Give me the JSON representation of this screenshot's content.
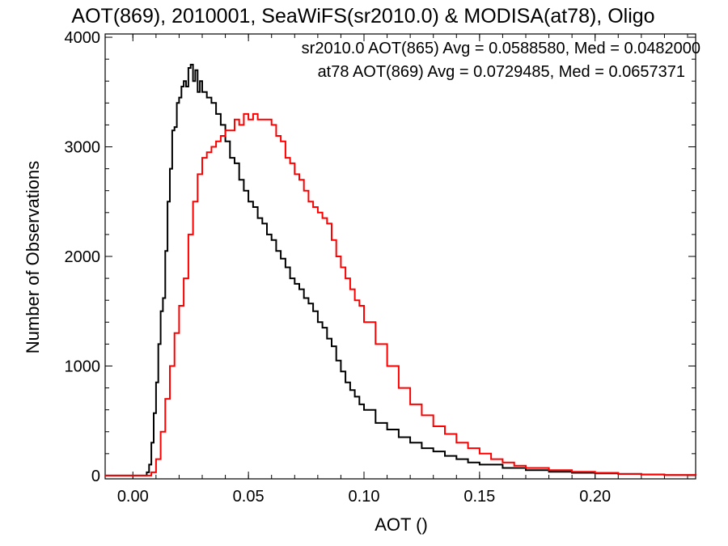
{
  "chart_data": {
    "type": "line",
    "title": "AOT(869), 2010001, SeaWiFS(sr2010.0) & MODISA(at78), Oligo",
    "xlabel": "AOT ()",
    "ylabel": "Number of Observations",
    "xlim": [
      -0.012,
      0.2435
    ],
    "ylim": [
      -30,
      4030
    ],
    "xticks": [
      0.0,
      0.05,
      0.1,
      0.15,
      0.2
    ],
    "xtick_labels": [
      "0.00",
      "0.05",
      "0.10",
      "0.15",
      "0.20"
    ],
    "yticks": [
      0,
      1000,
      2000,
      3000,
      4000
    ],
    "ytick_labels": [
      "0",
      "1000",
      "2000",
      "3000",
      "4000"
    ],
    "grid": false,
    "legend_position": "top-right",
    "series": [
      {
        "name": "sr2010.0 AOT(865) Avg = 0.0588580, Med = 0.0482000",
        "color": "#000000",
        "x": [
          -0.012,
          0.0,
          0.005,
          0.006,
          0.007,
          0.008,
          0.009,
          0.01,
          0.011,
          0.012,
          0.013,
          0.014,
          0.015,
          0.016,
          0.017,
          0.018,
          0.019,
          0.02,
          0.021,
          0.022,
          0.023,
          0.024,
          0.025,
          0.026,
          0.027,
          0.028,
          0.029,
          0.03,
          0.032,
          0.034,
          0.036,
          0.038,
          0.04,
          0.042,
          0.044,
          0.046,
          0.048,
          0.05,
          0.052,
          0.054,
          0.056,
          0.058,
          0.06,
          0.062,
          0.064,
          0.066,
          0.068,
          0.07,
          0.072,
          0.074,
          0.076,
          0.078,
          0.08,
          0.082,
          0.084,
          0.086,
          0.088,
          0.09,
          0.092,
          0.094,
          0.096,
          0.098,
          0.1,
          0.105,
          0.11,
          0.115,
          0.12,
          0.125,
          0.13,
          0.135,
          0.14,
          0.145,
          0.15,
          0.16,
          0.17,
          0.18,
          0.19,
          0.2,
          0.21,
          0.22,
          0.23,
          0.2435
        ],
        "y": [
          0,
          0,
          0,
          30,
          100,
          300,
          570,
          850,
          1200,
          1500,
          1620,
          2050,
          2500,
          2800,
          3150,
          3180,
          3400,
          3450,
          3550,
          3600,
          3550,
          3720,
          3750,
          3600,
          3700,
          3500,
          3600,
          3500,
          3450,
          3400,
          3300,
          3200,
          3050,
          2900,
          2850,
          2700,
          2600,
          2500,
          2450,
          2350,
          2300,
          2200,
          2150,
          2050,
          1980,
          1900,
          1800,
          1750,
          1700,
          1620,
          1570,
          1500,
          1400,
          1350,
          1250,
          1180,
          1050,
          950,
          850,
          780,
          720,
          650,
          600,
          480,
          420,
          350,
          300,
          250,
          220,
          180,
          150,
          120,
          100,
          70,
          50,
          35,
          25,
          20,
          15,
          10,
          5,
          0
        ]
      },
      {
        "name": "at78 AOT(869) Avg = 0.0729485, Med = 0.0657371",
        "color": "#ff0000",
        "x": [
          -0.012,
          0.0,
          0.006,
          0.008,
          0.01,
          0.012,
          0.014,
          0.016,
          0.018,
          0.02,
          0.022,
          0.024,
          0.026,
          0.028,
          0.03,
          0.032,
          0.034,
          0.036,
          0.038,
          0.04,
          0.042,
          0.044,
          0.046,
          0.048,
          0.05,
          0.052,
          0.054,
          0.056,
          0.058,
          0.06,
          0.062,
          0.064,
          0.066,
          0.068,
          0.07,
          0.072,
          0.074,
          0.076,
          0.078,
          0.08,
          0.082,
          0.084,
          0.086,
          0.088,
          0.09,
          0.092,
          0.094,
          0.096,
          0.098,
          0.1,
          0.105,
          0.11,
          0.115,
          0.12,
          0.125,
          0.13,
          0.135,
          0.14,
          0.145,
          0.15,
          0.155,
          0.16,
          0.165,
          0.17,
          0.18,
          0.19,
          0.2,
          0.21,
          0.22,
          0.23,
          0.2435
        ],
        "y": [
          0,
          0,
          0,
          30,
          150,
          400,
          700,
          1000,
          1300,
          1550,
          1800,
          2200,
          2500,
          2750,
          2900,
          2950,
          3000,
          3050,
          3100,
          3150,
          3150,
          3250,
          3200,
          3300,
          3250,
          3300,
          3250,
          3250,
          3250,
          3200,
          3100,
          3050,
          2900,
          2850,
          2750,
          2700,
          2600,
          2500,
          2450,
          2400,
          2350,
          2300,
          2150,
          2000,
          1900,
          1800,
          1700,
          1600,
          1550,
          1400,
          1200,
          1000,
          800,
          650,
          550,
          450,
          380,
          300,
          250,
          200,
          150,
          120,
          90,
          70,
          50,
          35,
          25,
          15,
          10,
          5,
          0
        ]
      }
    ]
  }
}
